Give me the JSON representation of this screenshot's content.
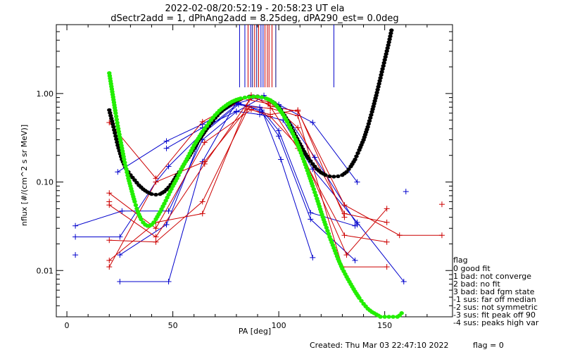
{
  "chart_data": {
    "type": "line",
    "title_lines": [
      "2022-02-08/20:52:19 - 20:58:23 UT ela",
      "dSectr2add = 1, dPhAng2add = 8.25deg, dPA290_est=    0.0deg"
    ],
    "xlabel": "PA [deg]",
    "ylabel": "nflux [#/(cm^2 s sr MeV)]",
    "xlim": [
      -5,
      182
    ],
    "ylim": [
      0.003,
      6.0
    ],
    "y_scale": "log",
    "x_ticks": [
      0,
      50,
      100,
      150
    ],
    "x_tick_labels": [
      "0",
      "50",
      "100",
      "150"
    ],
    "y_ticks": [
      0.01,
      0.1,
      1.0
    ],
    "y_tick_labels": [
      "0.01",
      "0.10",
      "1.00"
    ],
    "colors": {
      "blue": "#0000cc",
      "red": "#cc0000",
      "black_fit": "#000000",
      "green_fit": "#22ee00",
      "navy_tick": "#000080"
    },
    "series": [
      {
        "color": "blue",
        "points": [
          [
            4,
            0.032
          ],
          [
            26,
            0.047
          ],
          [
            48,
            0.047
          ],
          [
            64,
            0.3
          ],
          [
            80,
            0.62
          ],
          [
            92,
            0.9
          ],
          [
            100,
            0.75
          ],
          [
            116,
            0.47
          ],
          [
            137,
            0.1
          ]
        ]
      },
      {
        "color": "blue",
        "points": [
          [
            4,
            0.024
          ],
          [
            25,
            0.024
          ],
          [
            42,
            0.1
          ],
          [
            48,
            0.15
          ],
          [
            65,
            0.38
          ],
          [
            81,
            0.78
          ],
          [
            93,
            0.95
          ],
          [
            101,
            0.68
          ],
          [
            117,
            0.19
          ],
          [
            137,
            0.033
          ]
        ]
      },
      {
        "color": "blue",
        "points": [
          [
            24,
            0.13
          ],
          [
            47,
            0.29
          ],
          [
            64,
            0.45
          ],
          [
            80,
            0.77
          ],
          [
            91,
            0.7
          ],
          [
            100,
            0.38
          ],
          [
            115,
            0.045
          ],
          [
            136,
            0.032
          ]
        ]
      },
      {
        "color": "blue",
        "points": [
          [
            25,
            0.0075
          ],
          [
            48,
            0.0075
          ],
          [
            64,
            0.17
          ],
          [
            80,
            0.8
          ],
          [
            92,
            0.62
          ],
          [
            100,
            0.33
          ],
          [
            115,
            0.038
          ],
          [
            136,
            0.013
          ]
        ]
      },
      {
        "color": "blue",
        "points": [
          [
            25,
            0.015
          ],
          [
            47,
            0.033
          ],
          [
            64,
            0.35
          ],
          [
            81,
            0.75
          ],
          [
            92,
            0.65
          ],
          [
            101,
            0.18
          ],
          [
            116,
            0.014
          ]
        ]
      },
      {
        "color": "blue",
        "points": [
          [
            47,
            0.24
          ],
          [
            64,
            0.41
          ],
          [
            80,
            0.63
          ],
          [
            91,
            0.58
          ],
          [
            102,
            0.5
          ],
          [
            116,
            0.14
          ],
          [
            137,
            0.035
          ],
          [
            159,
            0.0075
          ]
        ]
      },
      {
        "color": "red",
        "points": [
          [
            20,
            0.47
          ],
          [
            42,
            0.11
          ],
          [
            64,
            0.48
          ],
          [
            87,
            0.96
          ],
          [
            96,
            0.72
          ],
          [
            109,
            0.63
          ],
          [
            131,
            0.055
          ],
          [
            157,
            0.025
          ],
          [
            177,
            0.025
          ]
        ]
      },
      {
        "color": "red",
        "points": [
          [
            20,
            0.075
          ],
          [
            42,
            0.03
          ],
          [
            65,
            0.28
          ],
          [
            87,
            0.66
          ],
          [
            96,
            0.55
          ],
          [
            110,
            0.24
          ],
          [
            132,
            0.015
          ],
          [
            151,
            0.05
          ]
        ]
      },
      {
        "color": "red",
        "points": [
          [
            20,
            0.055
          ],
          [
            42,
            0.024
          ],
          [
            65,
            0.16
          ],
          [
            87,
            0.9
          ],
          [
            96,
            0.79
          ],
          [
            109,
            0.41
          ],
          [
            131,
            0.044
          ],
          [
            151,
            0.035
          ]
        ]
      },
      {
        "color": "red",
        "points": [
          [
            20,
            0.022
          ],
          [
            42,
            0.021
          ],
          [
            64,
            0.06
          ],
          [
            86,
            0.71
          ],
          [
            96,
            0.68
          ],
          [
            109,
            0.56
          ],
          [
            130,
            0.011
          ],
          [
            151,
            0.011
          ]
        ]
      },
      {
        "color": "red",
        "points": [
          [
            20,
            0.013
          ],
          [
            42,
            0.035
          ],
          [
            64,
            0.044
          ],
          [
            86,
            0.85
          ],
          [
            95,
            0.77
          ],
          [
            109,
            0.24
          ],
          [
            131,
            0.025
          ],
          [
            151,
            0.021
          ]
        ]
      },
      {
        "color": "red",
        "points": [
          [
            20,
            0.011
          ],
          [
            42,
            0.1
          ],
          [
            65,
            0.17
          ],
          [
            85,
            0.67
          ],
          [
            96,
            0.58
          ],
          [
            109,
            0.65
          ],
          [
            131,
            0.04
          ]
        ]
      }
    ],
    "isolated_points": [
      {
        "color": "blue",
        "x": 4,
        "y": 0.015
      },
      {
        "color": "blue",
        "x": 160,
        "y": 0.078
      },
      {
        "color": "red",
        "x": 177,
        "y": 0.056
      },
      {
        "color": "red",
        "x": 20,
        "y": 0.06
      }
    ],
    "fit_black": {
      "color": "black_fit",
      "x_range": [
        20,
        159
      ],
      "points": [
        [
          20,
          0.65
        ],
        [
          22,
          0.42
        ],
        [
          24,
          0.26
        ],
        [
          26,
          0.18
        ],
        [
          28,
          0.14
        ],
        [
          30,
          0.12
        ],
        [
          32,
          0.105
        ],
        [
          34,
          0.092
        ],
        [
          36,
          0.083
        ],
        [
          38,
          0.077
        ],
        [
          40,
          0.073
        ],
        [
          42,
          0.072
        ],
        [
          44,
          0.073
        ],
        [
          46,
          0.078
        ],
        [
          48,
          0.087
        ],
        [
          50,
          0.1
        ],
        [
          52,
          0.12
        ],
        [
          54,
          0.14
        ],
        [
          56,
          0.17
        ],
        [
          58,
          0.2
        ],
        [
          60,
          0.24
        ],
        [
          62,
          0.29
        ],
        [
          64,
          0.34
        ],
        [
          66,
          0.4
        ],
        [
          68,
          0.46
        ],
        [
          70,
          0.53
        ],
        [
          72,
          0.6
        ],
        [
          74,
          0.66
        ],
        [
          76,
          0.72
        ],
        [
          78,
          0.78
        ],
        [
          80,
          0.83
        ],
        [
          82,
          0.87
        ],
        [
          84,
          0.9
        ],
        [
          86,
          0.92
        ],
        [
          88,
          0.93
        ],
        [
          90,
          0.93
        ],
        [
          92,
          0.91
        ],
        [
          94,
          0.88
        ],
        [
          96,
          0.84
        ],
        [
          98,
          0.78
        ],
        [
          100,
          0.7
        ],
        [
          102,
          0.6
        ],
        [
          104,
          0.5
        ],
        [
          106,
          0.41
        ],
        [
          108,
          0.33
        ],
        [
          110,
          0.27
        ],
        [
          112,
          0.22
        ],
        [
          114,
          0.185
        ],
        [
          116,
          0.16
        ],
        [
          118,
          0.14
        ],
        [
          120,
          0.128
        ],
        [
          122,
          0.12
        ],
        [
          124,
          0.116
        ],
        [
          126,
          0.115
        ],
        [
          128,
          0.116
        ],
        [
          130,
          0.12
        ],
        [
          132,
          0.13
        ],
        [
          134,
          0.15
        ],
        [
          136,
          0.18
        ],
        [
          138,
          0.23
        ],
        [
          140,
          0.3
        ],
        [
          142,
          0.42
        ],
        [
          144,
          0.62
        ],
        [
          146,
          0.95
        ],
        [
          148,
          1.5
        ],
        [
          150,
          2.4
        ],
        [
          152,
          3.8
        ],
        [
          153.5,
          5.6
        ]
      ]
    },
    "fit_green": {
      "color": "green_fit",
      "points": [
        [
          20,
          1.7
        ],
        [
          21,
          1.2
        ],
        [
          22,
          0.85
        ],
        [
          23,
          0.6
        ],
        [
          24,
          0.43
        ],
        [
          25,
          0.32
        ],
        [
          26,
          0.24
        ],
        [
          27,
          0.18
        ],
        [
          28,
          0.14
        ],
        [
          29,
          0.11
        ],
        [
          30,
          0.09
        ],
        [
          31,
          0.073
        ],
        [
          32,
          0.06
        ],
        [
          33,
          0.05
        ],
        [
          34,
          0.043
        ],
        [
          35,
          0.038
        ],
        [
          36,
          0.035
        ],
        [
          37,
          0.033
        ],
        [
          38,
          0.032
        ],
        [
          39,
          0.032
        ],
        [
          40,
          0.033
        ],
        [
          41,
          0.035
        ],
        [
          42,
          0.038
        ],
        [
          44,
          0.046
        ],
        [
          46,
          0.057
        ],
        [
          48,
          0.072
        ],
        [
          50,
          0.09
        ],
        [
          52,
          0.11
        ],
        [
          54,
          0.14
        ],
        [
          56,
          0.17
        ],
        [
          58,
          0.21
        ],
        [
          60,
          0.26
        ],
        [
          62,
          0.31
        ],
        [
          64,
          0.37
        ],
        [
          66,
          0.43
        ],
        [
          68,
          0.5
        ],
        [
          70,
          0.57
        ],
        [
          72,
          0.64
        ],
        [
          74,
          0.7
        ],
        [
          76,
          0.76
        ],
        [
          78,
          0.81
        ],
        [
          80,
          0.85
        ],
        [
          82,
          0.88
        ],
        [
          84,
          0.9
        ],
        [
          86,
          0.91
        ],
        [
          88,
          0.92
        ],
        [
          90,
          0.92
        ],
        [
          92,
          0.91
        ],
        [
          94,
          0.88
        ],
        [
          96,
          0.84
        ],
        [
          98,
          0.77
        ],
        [
          100,
          0.68
        ],
        [
          102,
          0.58
        ],
        [
          104,
          0.48
        ],
        [
          106,
          0.38
        ],
        [
          108,
          0.3
        ],
        [
          110,
          0.23
        ],
        [
          112,
          0.17
        ],
        [
          114,
          0.125
        ],
        [
          116,
          0.09
        ],
        [
          118,
          0.065
        ],
        [
          120,
          0.046
        ],
        [
          122,
          0.033
        ],
        [
          124,
          0.024
        ],
        [
          126,
          0.018
        ],
        [
          128,
          0.0135
        ],
        [
          130,
          0.0105
        ],
        [
          132,
          0.0085
        ],
        [
          134,
          0.007
        ],
        [
          136,
          0.0058
        ],
        [
          138,
          0.0049
        ],
        [
          140,
          0.0042
        ],
        [
          142,
          0.0037
        ],
        [
          144,
          0.0034
        ],
        [
          146,
          0.0032
        ],
        [
          148,
          0.003
        ],
        [
          150,
          0.003
        ],
        [
          152,
          0.003
        ],
        [
          154,
          0.003
        ],
        [
          156,
          0.003
        ],
        [
          157,
          0.0031
        ],
        [
          158,
          0.0033
        ],
        [
          159,
          0.0036
        ]
      ]
    },
    "sector_ticks": [
      {
        "x": 81.5,
        "color": "blue"
      },
      {
        "x": 84.0,
        "color": "blue"
      },
      {
        "x": 85.5,
        "color": "red"
      },
      {
        "x": 86.8,
        "color": "blue"
      },
      {
        "x": 87.6,
        "color": "navy_tick"
      },
      {
        "x": 88.6,
        "color": "red"
      },
      {
        "x": 89.6,
        "color": "navy_tick"
      },
      {
        "x": 90.5,
        "color": "red"
      },
      {
        "x": 91.6,
        "color": "blue"
      },
      {
        "x": 92.6,
        "color": "blue"
      },
      {
        "x": 93.5,
        "color": "red"
      },
      {
        "x": 94.6,
        "color": "red"
      },
      {
        "x": 95.4,
        "color": "red"
      },
      {
        "x": 96.8,
        "color": "red"
      },
      {
        "x": 98.6,
        "color": "navy_tick"
      },
      {
        "x": 126.0,
        "color": "blue"
      }
    ],
    "legend": {
      "placement": "right",
      "title": "flag",
      "entries": [
        " 0 good fit",
        " 1 bad: not converge",
        " 2 bad: no fit",
        " 3 bad: bad fgm state",
        "-1 sus: far off median",
        "-2 sus: not symmetric",
        "-3 sus: fit peak off 90",
        "-4 sus: peaks high var"
      ]
    },
    "footer": {
      "created": "Created: Thu Mar 03 22:47:10 2022",
      "flag": "flag = 0"
    }
  }
}
